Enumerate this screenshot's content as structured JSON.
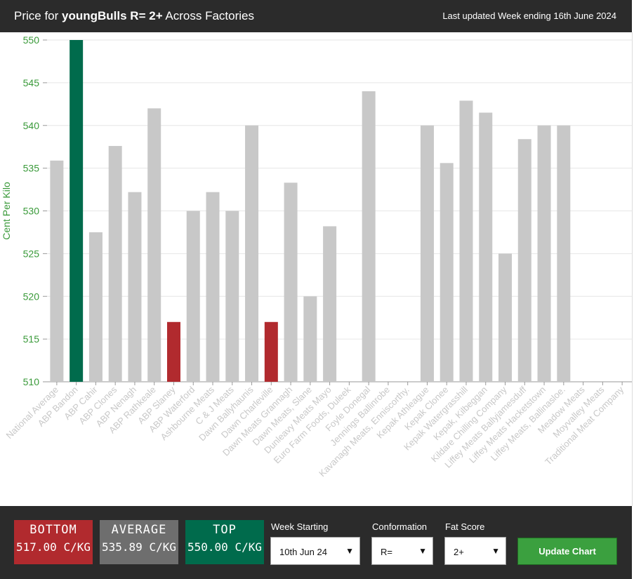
{
  "header": {
    "title_prefix": "Price for ",
    "title_bold": "youngBulls R= 2+",
    "title_suffix": " Across Factories",
    "updated": "Last updated Week ending 16th June 2024"
  },
  "colors": {
    "default_bar": "#c8c8c8",
    "top_bar": "#006b4c",
    "bottom_bar": "#b12a2e",
    "axis_text": "#3a9a3a",
    "category_text": "#c8c8c8"
  },
  "chart_data": {
    "type": "bar",
    "ylabel": "Cent Per Kilo",
    "ylim": [
      510,
      550
    ],
    "yticks": [
      510,
      515,
      520,
      525,
      530,
      535,
      540,
      545,
      550
    ],
    "grid": true,
    "categories": [
      "National Average",
      "ABP Bandon",
      "ABP Cahir",
      "ABP Clones",
      "ABP Nenagh",
      "ABP Rathkeale",
      "ABP Slaney",
      "ABP Waterford",
      "Ashbourne Meats",
      "C & J Meats",
      "Dawn Ballyhaunis",
      "Dawn Charleville",
      "Dawn Meats Grannagh",
      "Dawn Meats, Slane",
      "Dunleavy Meats Mayo",
      "Euro Farm Foods, Duleek",
      "Foyle Donegal",
      "Jennings Ballinrobe",
      "Kavanagh Meats, Enniscorthy.",
      "Kepak Athleague",
      "Kepak Clonee",
      "Kepak Watergrasshill",
      "Kepak, Kilbeggan",
      "Kildare Chilling Company",
      "Liffey Meats Ballyjamesduff",
      "Liffey Meats Hacketstown",
      "Liffey Meats, Ballinasloe.",
      "Meadow Meats",
      "Moyvalley Meats",
      "Traditional Meat Company"
    ],
    "values": [
      535.89,
      550,
      527.5,
      537.6,
      532.2,
      542,
      517,
      530,
      532.2,
      530,
      540,
      517,
      533.3,
      520,
      528.2,
      null,
      544,
      null,
      null,
      540,
      535.6,
      542.9,
      541.5,
      525,
      538.4,
      540,
      540,
      null,
      null,
      null
    ],
    "highlight": {
      "top": "ABP Bandon",
      "bottom": [
        "ABP Slaney",
        "Dawn Charleville"
      ]
    }
  },
  "footer": {
    "bottom_label": "BOTTOM",
    "bottom_value": "517.00 C/KG",
    "average_label": "AVERAGE",
    "average_value": "535.89 C/KG",
    "top_label": "TOP",
    "top_value": "550.00 C/KG",
    "week_label": "Week Starting",
    "week_value": "10th Jun 24",
    "conformation_label": "Conformation",
    "conformation_value": "R=",
    "fat_label": "Fat Score",
    "fat_value": "2+",
    "update_button": "Update Chart"
  }
}
